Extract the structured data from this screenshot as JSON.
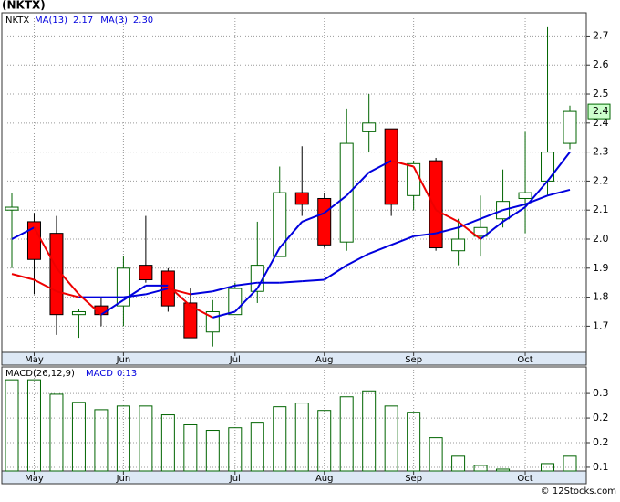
{
  "title": "(NKTX)",
  "watermark": "© 12Stocks.com",
  "chart_data": [
    {
      "type": "candlestick",
      "ticker": "NKTX",
      "categories": [
        null,
        "May",
        null,
        null,
        null,
        "Jun",
        null,
        null,
        null,
        null,
        "Jul",
        null,
        null,
        null,
        "Aug",
        null,
        null,
        null,
        "Sep",
        null,
        null,
        null,
        null,
        "Oct",
        null,
        null
      ],
      "open": [
        2.1,
        2.06,
        2.02,
        1.74,
        1.77,
        1.77,
        1.91,
        1.89,
        1.78,
        1.68,
        1.74,
        1.82,
        1.94,
        2.16,
        2.14,
        1.99,
        2.37,
        2.38,
        2.15,
        2.27,
        1.96,
        2.01,
        2.07,
        2.14,
        2.2,
        2.33
      ],
      "high": [
        2.16,
        2.09,
        2.08,
        1.76,
        1.8,
        1.94,
        2.08,
        1.9,
        1.83,
        1.79,
        1.85,
        2.06,
        2.25,
        2.32,
        2.16,
        2.45,
        2.5,
        2.38,
        2.27,
        2.28,
        2.07,
        2.15,
        2.24,
        2.37,
        2.73,
        2.46
      ],
      "low": [
        1.9,
        1.81,
        1.67,
        1.66,
        1.7,
        1.7,
        1.85,
        1.75,
        1.66,
        1.63,
        1.74,
        1.78,
        1.94,
        2.08,
        1.97,
        1.96,
        2.3,
        2.08,
        2.1,
        1.96,
        1.91,
        1.94,
        2.04,
        2.02,
        2.15,
        2.31
      ],
      "close": [
        2.11,
        1.93,
        1.74,
        1.75,
        1.74,
        1.9,
        1.86,
        1.77,
        1.66,
        1.75,
        1.83,
        1.91,
        2.16,
        2.12,
        1.98,
        2.33,
        2.4,
        2.12,
        2.26,
        1.97,
        2.0,
        2.04,
        2.13,
        2.16,
        2.3,
        2.44
      ],
      "up_color": "#ffffff",
      "down_color": "#ff0000",
      "up_outline": "#006400",
      "down_outline": "#000000",
      "series": [
        {
          "name": "MA(13)",
          "value_label": "2.17",
          "values": [
            1.88,
            1.86,
            1.82,
            1.8,
            1.8,
            1.8,
            1.81,
            1.83,
            1.81,
            1.82,
            1.84,
            1.85,
            1.85,
            1.855,
            1.86,
            1.91,
            1.95,
            1.98,
            2.01,
            2.02,
            2.04,
            2.07,
            2.1,
            2.12,
            2.15,
            2.17
          ]
        },
        {
          "name": "MA(3)",
          "value_label": "2.30",
          "values": [
            2.0,
            2.04,
            1.9,
            1.81,
            1.74,
            1.79,
            1.84,
            1.84,
            1.77,
            1.73,
            1.75,
            1.83,
            1.97,
            2.06,
            2.09,
            2.15,
            2.23,
            2.27,
            2.25,
            2.1,
            2.06,
            2.0,
            2.06,
            2.11,
            2.2,
            2.3
          ]
        }
      ],
      "rise_color": "#0000dd",
      "fall_color": "#ee0000",
      "last_label": "2.4",
      "last_color": "#ccffcc",
      "ylim": [
        1.61,
        2.78
      ],
      "yticks": [
        1.7,
        1.8,
        1.9,
        {
          "value": 2.0,
          "label": "2.0"
        },
        2.1,
        2.2,
        2.3,
        2.4,
        2.5,
        2.6,
        2.7
      ],
      "grid": true
    },
    {
      "type": "bar",
      "name": "MACD(26,12,9)",
      "value_name": "MACD",
      "value_label": "0.13",
      "values": [
        0.337,
        0.337,
        0.298,
        0.276,
        0.256,
        0.266,
        0.266,
        0.242,
        0.215,
        0.2,
        0.207,
        0.222,
        0.264,
        0.274,
        0.254,
        0.291,
        0.307,
        0.266,
        0.249,
        0.18,
        0.13,
        0.105,
        0.095,
        0.09,
        0.11,
        0.13
      ],
      "color": "#006400",
      "ylim": [
        0.09,
        0.372
      ],
      "yticks": [
        0.3,
        {
          "value": 0.2333,
          "label": "0.2"
        },
        {
          "value": 0.1667,
          "label": "0.2"
        },
        0.1
      ],
      "grid": true
    }
  ]
}
